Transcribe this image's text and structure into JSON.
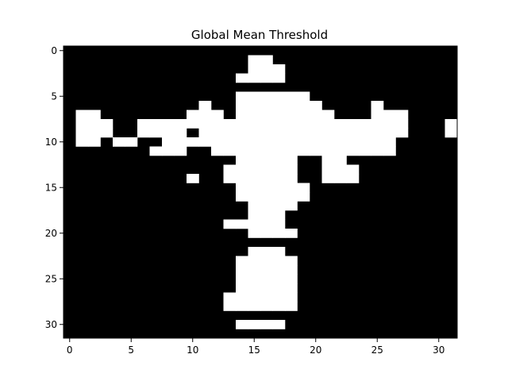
{
  "chart_data": {
    "type": "heatmap",
    "title": "Global Mean Threshold",
    "xlabel": "",
    "ylabel": "",
    "colormap": "gray",
    "colors": {
      "on": "#ffffff",
      "off": "#000000",
      "text": "#000000"
    },
    "grid": false,
    "xlim": [
      -0.5,
      31.5
    ],
    "ylim": [
      31.5,
      -0.5
    ],
    "x_ticks": [
      0,
      5,
      10,
      15,
      20,
      25,
      30
    ],
    "y_ticks": [
      0,
      5,
      10,
      15,
      20,
      25,
      30
    ],
    "rows": [
      "00000000000000000000000000000000",
      "00000000000000011000000000000000",
      "00000000000000011100000000000000",
      "00000000000000111100000000000000",
      "00000000000000000000000000000000",
      "00000000000000111111000000000000",
      "00000000000100111111100001000000",
      "01100000001110111111110001110000",
      "01110011111111111111111111110001",
      "01110011110111111111111111110001",
      "01101100111111111111111111100000",
      "00000001110011111111111111100000",
      "00000000000000111110011000000000",
      "00000000000001111110011100000000",
      "00000000001001111110011100000000",
      "00000000000000111111000000000000",
      "00000000000000111111000000000000",
      "00000000000000011110000000000000",
      "00000000000000011100000000000000",
      "00000000000001111100000000000000",
      "00000000000000011110000000000000",
      "00000000000000000000000000000000",
      "00000000000000011100000000000000",
      "00000000000000111110000000000000",
      "00000000000000111110000000000000",
      "00000000000000111110000000000000",
      "00000000000000111110000000000000",
      "00000000000001111110000000000000",
      "00000000000001111110000000000000",
      "00000000000000000000000000000000",
      "00000000000000111100000000000000",
      "00000000000000000000000000000000"
    ]
  }
}
